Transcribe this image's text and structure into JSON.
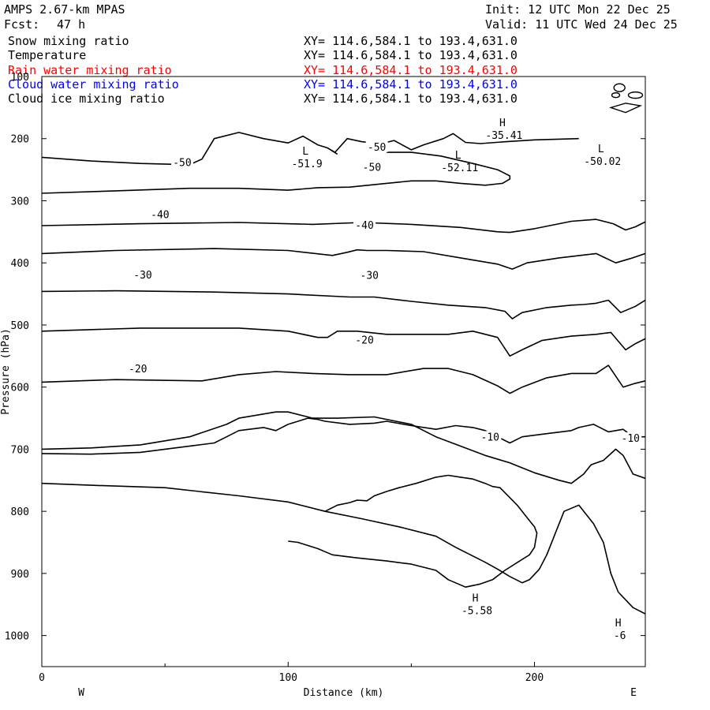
{
  "header": {
    "model": "AMPS 2.67-km MPAS",
    "init": "Init: 12 UTC Mon 22 Dec 25",
    "fcst_label": "Fcst:",
    "fcst_value": "47 h",
    "valid": "Valid: 11 UTC Wed 24 Dec 25"
  },
  "fields": [
    {
      "name": "Snow mixing ratio",
      "xy": "XY= 114.6,584.1 to 193.4,631.0",
      "color": "#000000"
    },
    {
      "name": "Temperature",
      "xy": "XY= 114.6,584.1 to 193.4,631.0",
      "color": "#000000"
    },
    {
      "name": "Rain water mixing ratio",
      "xy": "XY= 114.6,584.1 to 193.4,631.0",
      "color": "#ff0000"
    },
    {
      "name": "Cloud water mixing ratio",
      "xy": "XY= 114.6,584.1 to 193.4,631.0",
      "color": "#0000ff"
    },
    {
      "name": "Cloud ice mixing ratio",
      "xy": "XY= 114.6,584.1 to 193.4,631.0",
      "color": "#000000"
    }
  ],
  "chart_data": {
    "type": "line",
    "title": "",
    "xlabel": "Distance (km)",
    "ylabel": "Pressure (hPa)",
    "xlim": [
      0,
      245
    ],
    "ylim": [
      1050,
      100
    ],
    "x_ticks": [
      0,
      100,
      200
    ],
    "y_ticks": [
      100,
      200,
      300,
      400,
      500,
      600,
      700,
      800,
      900,
      1000
    ],
    "x_end_labels": {
      "left": "W",
      "right": "E"
    },
    "grid": false,
    "contour_labels": [
      "-50",
      "-50",
      "-50",
      "-40",
      "-40",
      "-30",
      "-30",
      "-20",
      "-20",
      "-10",
      "-10"
    ],
    "extrema": [
      {
        "kind": "H",
        "value": "-35.41"
      },
      {
        "kind": "L",
        "value": "-51.9"
      },
      {
        "kind": "L",
        "value": "-52.11"
      },
      {
        "kind": "L",
        "value": "-50.02"
      },
      {
        "kind": "H",
        "value": "-5.58"
      },
      {
        "kind": "H",
        "value": "-6"
      }
    ],
    "series": [
      {
        "values": [
          [
            0,
            230
          ],
          [
            20,
            236
          ],
          [
            40,
            240
          ],
          [
            60,
            242
          ],
          [
            65,
            233
          ],
          [
            70,
            200
          ],
          [
            80,
            190
          ],
          [
            90,
            200
          ],
          [
            100,
            207
          ],
          [
            106,
            196
          ],
          [
            112,
            210
          ],
          [
            116,
            215
          ],
          [
            119,
            222
          ],
          [
            124,
            200
          ],
          [
            130,
            205
          ],
          [
            138,
            208
          ],
          [
            143,
            203
          ],
          [
            150,
            218
          ],
          [
            155,
            210
          ],
          [
            163,
            200
          ],
          [
            167,
            192
          ],
          [
            172,
            206
          ],
          [
            178,
            208
          ],
          [
            188,
            205
          ],
          [
            200,
            202
          ],
          [
            218,
            200
          ]
        ]
      },
      {
        "values": [
          [
            116,
            215
          ],
          [
            120,
            225
          ]
        ]
      },
      {
        "values": [
          [
            0,
            288
          ],
          [
            30,
            284
          ],
          [
            60,
            280
          ],
          [
            80,
            280
          ],
          [
            100,
            283
          ],
          [
            112,
            279
          ],
          [
            125,
            278
          ],
          [
            140,
            272
          ],
          [
            150,
            268
          ],
          [
            160,
            268
          ],
          [
            170,
            272
          ],
          [
            180,
            275
          ],
          [
            187,
            272
          ],
          [
            190,
            265
          ],
          [
            190,
            260
          ],
          [
            185,
            250
          ],
          [
            175,
            240
          ],
          [
            162,
            228
          ],
          [
            150,
            222
          ],
          [
            140,
            222
          ]
        ]
      },
      {
        "values": [
          [
            0,
            340
          ],
          [
            40,
            337
          ],
          [
            80,
            335
          ],
          [
            110,
            338
          ],
          [
            130,
            335
          ],
          [
            150,
            338
          ],
          [
            170,
            343
          ],
          [
            185,
            350
          ],
          [
            190,
            351
          ],
          [
            200,
            345
          ],
          [
            215,
            333
          ],
          [
            225,
            330
          ],
          [
            232,
            337
          ],
          [
            237,
            347
          ],
          [
            241,
            342
          ],
          [
            245,
            334
          ]
        ]
      },
      {
        "values": [
          [
            0,
            385
          ],
          [
            30,
            380
          ],
          [
            70,
            377
          ],
          [
            100,
            380
          ],
          [
            118,
            388
          ],
          [
            124,
            383
          ],
          [
            128,
            379
          ],
          [
            132,
            380
          ],
          [
            140,
            380
          ],
          [
            155,
            382
          ],
          [
            170,
            392
          ],
          [
            185,
            402
          ],
          [
            191,
            410
          ],
          [
            197,
            400
          ],
          [
            210,
            392
          ],
          [
            225,
            385
          ],
          [
            233,
            400
          ],
          [
            239,
            393
          ],
          [
            245,
            385
          ]
        ]
      },
      {
        "values": [
          [
            0,
            446
          ],
          [
            30,
            445
          ],
          [
            70,
            447
          ],
          [
            100,
            450
          ],
          [
            125,
            455
          ],
          [
            135,
            455
          ],
          [
            150,
            462
          ],
          [
            165,
            468
          ],
          [
            180,
            472
          ],
          [
            188,
            478
          ],
          [
            191,
            490
          ],
          [
            195,
            480
          ],
          [
            205,
            472
          ],
          [
            215,
            468
          ],
          [
            220,
            467
          ],
          [
            225,
            465
          ],
          [
            230,
            460
          ],
          [
            235,
            480
          ],
          [
            241,
            470
          ],
          [
            245,
            460
          ]
        ]
      },
      {
        "values": [
          [
            0,
            510
          ],
          [
            40,
            505
          ],
          [
            80,
            505
          ],
          [
            100,
            510
          ],
          [
            112,
            520
          ],
          [
            116,
            520
          ],
          [
            120,
            510
          ],
          [
            128,
            510
          ],
          [
            140,
            515
          ],
          [
            155,
            515
          ],
          [
            165,
            515
          ],
          [
            175,
            510
          ],
          [
            185,
            520
          ],
          [
            190,
            550
          ],
          [
            195,
            540
          ],
          [
            203,
            525
          ],
          [
            215,
            518
          ],
          [
            225,
            515
          ],
          [
            231,
            512
          ],
          [
            237,
            540
          ],
          [
            241,
            530
          ],
          [
            245,
            522
          ]
        ]
      },
      {
        "values": [
          [
            0,
            592
          ],
          [
            30,
            588
          ],
          [
            65,
            590
          ],
          [
            80,
            580
          ],
          [
            95,
            575
          ],
          [
            110,
            578
          ],
          [
            125,
            580
          ],
          [
            140,
            580
          ],
          [
            155,
            570
          ],
          [
            165,
            570
          ],
          [
            175,
            580
          ],
          [
            185,
            598
          ],
          [
            190,
            610
          ],
          [
            195,
            600
          ],
          [
            205,
            585
          ],
          [
            215,
            578
          ],
          [
            225,
            578
          ],
          [
            230,
            565
          ],
          [
            236,
            600
          ],
          [
            240,
            595
          ],
          [
            245,
            590
          ]
        ]
      },
      {
        "values": [
          [
            0,
            707
          ],
          [
            20,
            708
          ],
          [
            40,
            705
          ],
          [
            50,
            700
          ],
          [
            62,
            694
          ],
          [
            70,
            690
          ],
          [
            75,
            680
          ],
          [
            80,
            670
          ],
          [
            90,
            665
          ],
          [
            95,
            670
          ],
          [
            100,
            660
          ],
          [
            108,
            650
          ],
          [
            112,
            652
          ],
          [
            115,
            655
          ],
          [
            125,
            660
          ],
          [
            135,
            658
          ],
          [
            140,
            655
          ],
          [
            150,
            662
          ],
          [
            160,
            668
          ],
          [
            168,
            662
          ],
          [
            175,
            665
          ],
          [
            180,
            670
          ],
          [
            185,
            680
          ],
          [
            190,
            690
          ],
          [
            195,
            680
          ],
          [
            205,
            675
          ],
          [
            215,
            670
          ],
          [
            218,
            665
          ],
          [
            224,
            660
          ],
          [
            230,
            672
          ],
          [
            236,
            668
          ],
          [
            240,
            680
          ],
          [
            245,
            680
          ]
        ]
      },
      {
        "values": [
          [
            0,
            700
          ],
          [
            20,
            698
          ],
          [
            40,
            693
          ],
          [
            60,
            680
          ],
          [
            75,
            660
          ],
          [
            80,
            650
          ],
          [
            95,
            640
          ],
          [
            100,
            640
          ],
          [
            110,
            650
          ],
          [
            120,
            650
          ],
          [
            135,
            648
          ],
          [
            150,
            660
          ],
          [
            160,
            680
          ],
          [
            170,
            695
          ],
          [
            180,
            710
          ],
          [
            190,
            722
          ],
          [
            200,
            738
          ],
          [
            210,
            750
          ],
          [
            215,
            755
          ],
          [
            220,
            740
          ],
          [
            223,
            725
          ],
          [
            228,
            718
          ],
          [
            233,
            700
          ],
          [
            236,
            710
          ],
          [
            240,
            740
          ],
          [
            245,
            747
          ]
        ]
      },
      {
        "values": [
          [
            0,
            755
          ],
          [
            20,
            758
          ],
          [
            50,
            762
          ],
          [
            80,
            775
          ],
          [
            100,
            785
          ],
          [
            115,
            800
          ],
          [
            130,
            812
          ],
          [
            145,
            825
          ],
          [
            160,
            840
          ],
          [
            168,
            858
          ],
          [
            175,
            872
          ],
          [
            180,
            882
          ],
          [
            185,
            893
          ],
          [
            190,
            905
          ],
          [
            195,
            915
          ],
          [
            198,
            910
          ],
          [
            202,
            893
          ],
          [
            205,
            870
          ],
          [
            210,
            820
          ],
          [
            212,
            800
          ],
          [
            218,
            790
          ],
          [
            224,
            820
          ],
          [
            228,
            850
          ],
          [
            231,
            900
          ],
          [
            234,
            930
          ],
          [
            240,
            955
          ],
          [
            245,
            965
          ]
        ]
      },
      {
        "values": [
          [
            115,
            800
          ],
          [
            120,
            790
          ],
          [
            125,
            786
          ],
          [
            128,
            782
          ],
          [
            132,
            783
          ],
          [
            135,
            775
          ],
          [
            140,
            768
          ],
          [
            145,
            762
          ],
          [
            152,
            755
          ],
          [
            160,
            745
          ],
          [
            165,
            742
          ],
          [
            170,
            745
          ],
          [
            175,
            748
          ],
          [
            180,
            755
          ],
          [
            183,
            760
          ],
          [
            186,
            762
          ],
          [
            193,
            790
          ],
          [
            198,
            815
          ],
          [
            200,
            825
          ],
          [
            201,
            835
          ],
          [
            200,
            858
          ],
          [
            198,
            870
          ],
          [
            194,
            880
          ],
          [
            188,
            895
          ],
          [
            183,
            910
          ],
          [
            178,
            917
          ],
          [
            172,
            922
          ],
          [
            165,
            910
          ],
          [
            160,
            895
          ],
          [
            150,
            885
          ],
          [
            140,
            880
          ],
          [
            128,
            875
          ],
          [
            118,
            870
          ],
          [
            112,
            860
          ],
          [
            104,
            850
          ],
          [
            100,
            848
          ]
        ]
      }
    ]
  }
}
